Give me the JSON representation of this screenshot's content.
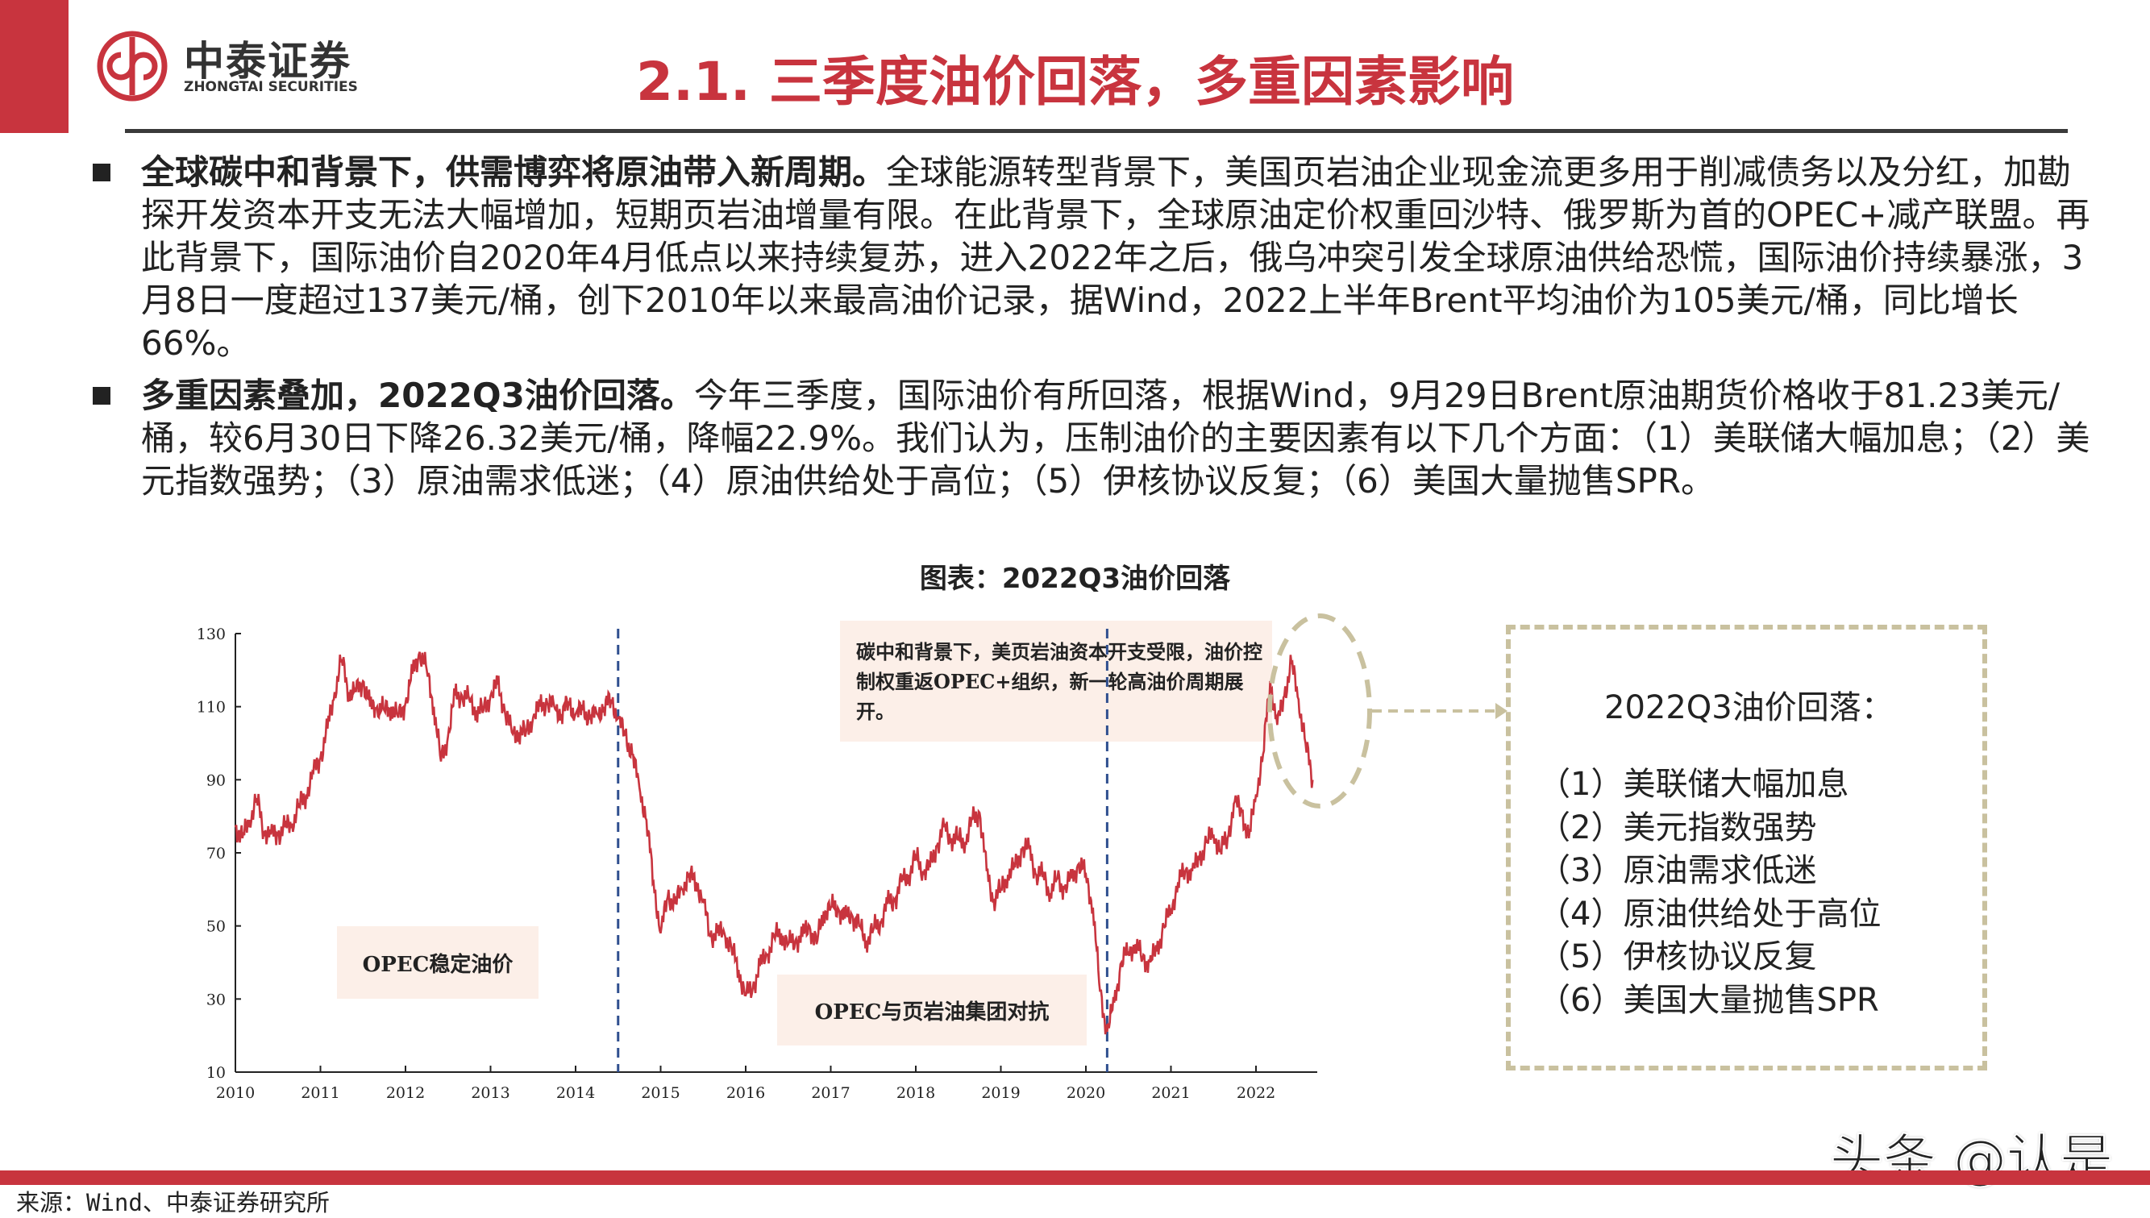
{
  "header": {
    "logo_cn": "中泰证券",
    "logo_en": "ZHONGTAI SECURITIES",
    "title": "2.1.  三季度油价回落，多重因素影响",
    "brand_color": "#c8343e"
  },
  "bullets": [
    {
      "lead": "全球碳中和背景下，供需博弈将原油带入新周期。",
      "body": "全球能源转型背景下，美国页岩油企业现金流更多用于削减债务以及分红，加勘探开发资本开支无法大幅增加，短期页岩油增量有限。在此背景下，全球原油定价权重回沙特、俄罗斯为首的OPEC+减产联盟。再此背景下，国际油价自2020年4月低点以来持续复苏，进入2022年之后，俄乌冲突引发全球原油供给恐慌，国际油价持续暴涨，3月8日一度超过137美元/桶，创下2010年以来最高油价记录，据Wind，2022上半年Brent平均油价为105美元/桶，同比增长66%。"
    },
    {
      "lead": "多重因素叠加，2022Q3油价回落。",
      "body": "今年三季度，国际油价有所回落，根据Wind，9月29日Brent原油期货价格收于81.23美元/桶，较6月30日下降26.32美元/桶，降幅22.9%。我们认为，压制油价的主要因素有以下几个方面：（1）美联储大幅加息；（2）美元指数强势；（3）原油需求低迷；（4）原油供给处于高位；（5）伊核协议反复；（6）美国大量抛售SPR。"
    }
  ],
  "chart_title": "图表：2022Q3油价回落",
  "chart_data": {
    "type": "line",
    "title": "图表：2022Q3油价回落",
    "xlabel": "",
    "ylabel": "",
    "x_ticks": [
      "2010",
      "2011",
      "2012",
      "2013",
      "2014",
      "2015",
      "2016",
      "2017",
      "2018",
      "2019",
      "2020",
      "2021",
      "2022"
    ],
    "y_ticks": [
      10,
      30,
      50,
      70,
      90,
      110,
      130
    ],
    "ylim": [
      10,
      130
    ],
    "xlim": [
      "2010-01",
      "2022-09"
    ],
    "grid": false,
    "line_color": "#c8343e",
    "series": [
      {
        "values_by_year": {
          "2010": [
            77,
            74,
            79,
            85,
            76,
            75,
            75,
            77,
            78,
            83,
            86,
            92
          ],
          "2011": [
            96,
            104,
            114,
            123,
            114,
            114,
            117,
            110,
            110,
            109,
            110,
            107
          ],
          "2012": [
            111,
            119,
            125,
            120,
            110,
            95,
            102,
            113,
            113,
            112,
            109,
            109
          ],
          "2013": [
            113,
            116,
            109,
            103,
            103,
            103,
            107,
            110,
            111,
            110,
            108,
            111
          ],
          "2014": [
            108,
            109,
            107,
            108,
            110,
            112,
            107,
            102,
            97,
            88,
            79,
            62
          ],
          "2015": [
            48,
            58,
            56,
            60,
            64,
            62,
            57,
            47,
            48,
            48,
            44,
            38
          ],
          "2016": [
            31,
            33,
            39,
            42,
            47,
            48,
            45,
            46,
            47,
            50,
            45,
            54
          ],
          "2017": [
            55,
            55,
            52,
            53,
            50,
            46,
            49,
            51,
            56,
            57,
            62,
            64
          ],
          "2018": [
            69,
            65,
            66,
            72,
            77,
            74,
            74,
            73,
            79,
            81,
            65,
            57
          ],
          "2019": [
            60,
            64,
            66,
            71,
            71,
            64,
            64,
            59,
            63,
            60,
            63,
            67
          ],
          "2020": [
            64,
            55,
            32,
            21,
            29,
            40,
            43,
            45,
            41,
            40,
            43,
            50
          ],
          "2021": [
            54,
            62,
            65,
            65,
            68,
            73,
            75,
            71,
            74,
            84,
            81,
            74
          ],
          "2022": [
            86,
            97,
            117,
            105,
            113,
            122,
            112,
            100,
            90
          ]
        }
      }
    ],
    "dividers": [
      "2014-07",
      "2020-04"
    ],
    "annotations": [
      {
        "text": "OPEC稳定油价"
      },
      {
        "text": "OPEC与页岩油集团对抗"
      },
      {
        "text": "碳中和背景下，美页岩油资本开支受限，油价控制权重返OPEC+组织，新一轮高油价周期展开。"
      }
    ],
    "highlight_color": "#c9c19f",
    "divider_color": "#2f4f8f"
  },
  "q3_box": {
    "title": "2022Q3油价回落：",
    "items": [
      "（1）美联储大幅加息",
      "（2）美元指数强势",
      "（3）原油需求低迷",
      "（4）原油供给处于高位",
      "（5）伊核协议反复",
      "（6）美国大量抛售SPR"
    ]
  },
  "watermark": "头条 @认是",
  "footer": {
    "source": "来源：Wind、中泰证券研究所"
  }
}
